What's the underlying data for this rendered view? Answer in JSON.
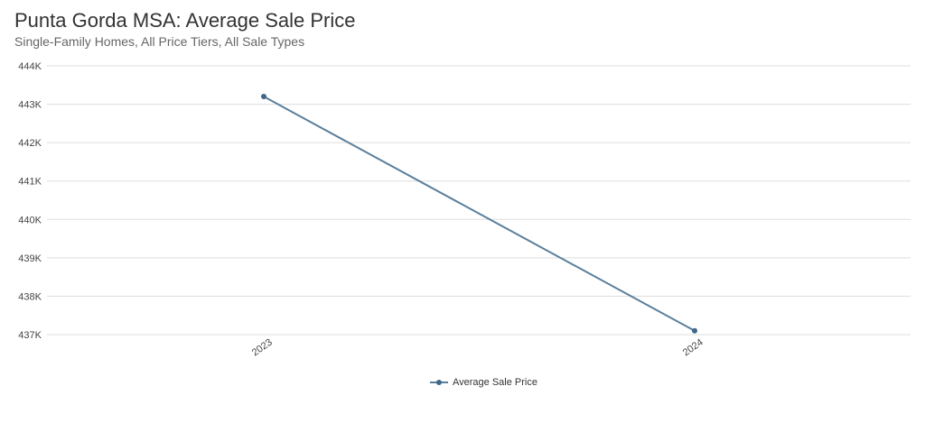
{
  "chart_data": {
    "type": "line",
    "title": "Punta Gorda MSA: Average Sale Price",
    "subtitle": "Single-Family Homes, All Price Tiers, All Sale Types",
    "categories": [
      "2023",
      "2024"
    ],
    "series": [
      {
        "name": "Average Sale Price",
        "values": [
          443200,
          437100
        ],
        "color": "#5b7f9b"
      }
    ],
    "yticks": [
      {
        "value": 437000,
        "label": "437K"
      },
      {
        "value": 438000,
        "label": "438K"
      },
      {
        "value": 439000,
        "label": "439K"
      },
      {
        "value": 440000,
        "label": "440K"
      },
      {
        "value": 441000,
        "label": "441K"
      },
      {
        "value": 442000,
        "label": "442K"
      },
      {
        "value": 443000,
        "label": "443K"
      },
      {
        "value": 444000,
        "label": "444K"
      }
    ],
    "ylim": [
      437000,
      444000
    ],
    "grid": true,
    "legend_position": "bottom-center",
    "xlabel": "",
    "ylabel": ""
  }
}
